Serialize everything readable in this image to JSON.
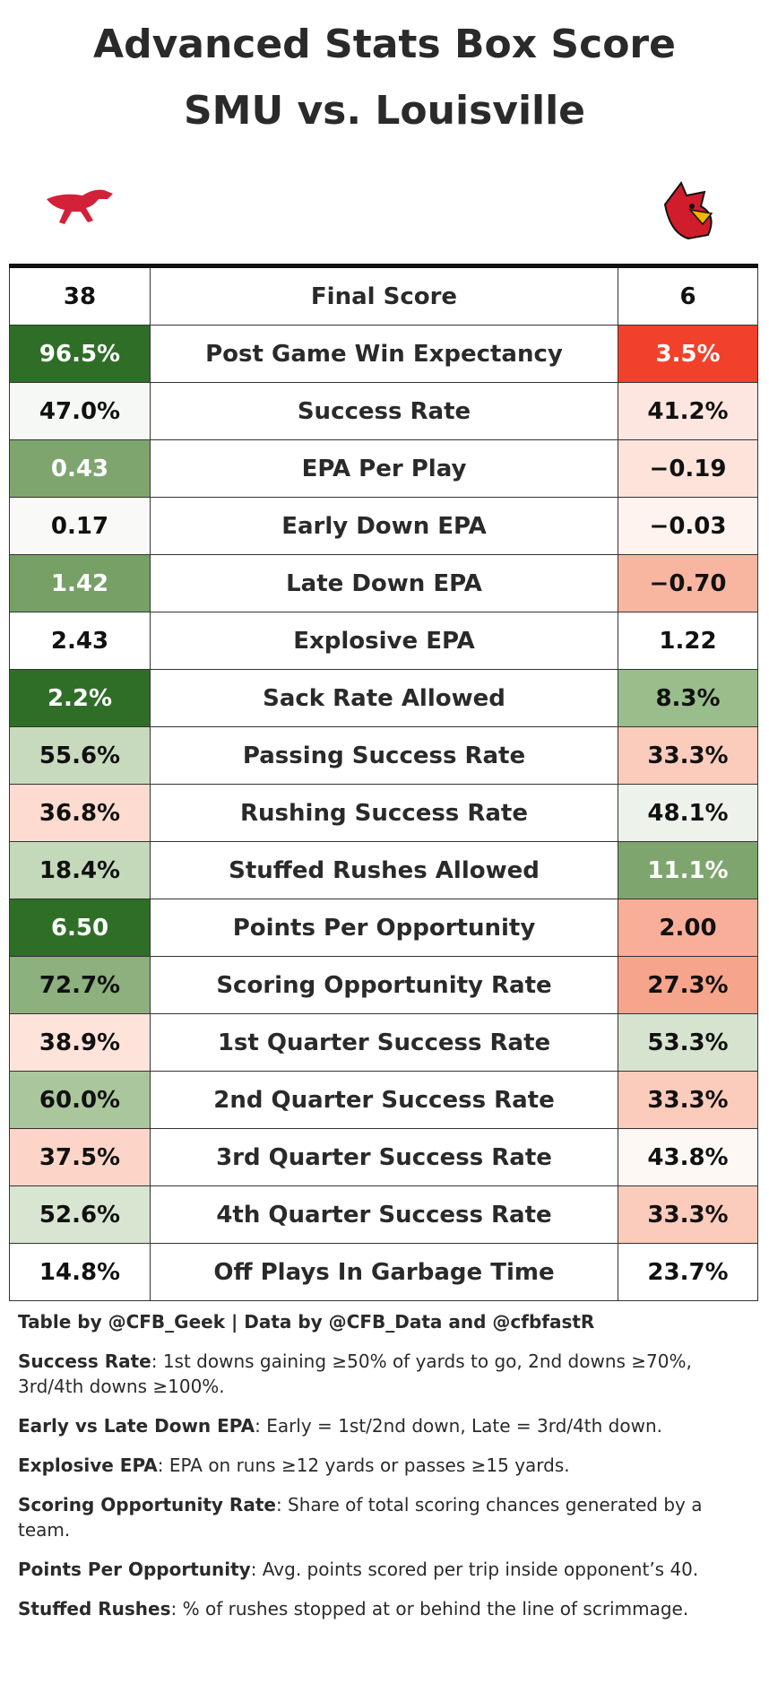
{
  "header": {
    "title": "Advanced Stats Box Score",
    "subtitle": "SMU vs. Louisville"
  },
  "table": {
    "rows": [
      {
        "left": "38",
        "stat": "Final Score",
        "right": "6",
        "left_color": "#ffffff",
        "right_color": "#ffffff"
      },
      {
        "left": "96.5%",
        "stat": "Post Game Win Expectancy",
        "right": "3.5%",
        "left_color": "#2f6e27",
        "right_color": "#f2412b"
      },
      {
        "left": "47.0%",
        "stat": "Success Rate",
        "right": "41.2%",
        "left_color": "#f6f8f5",
        "right_color": "#fde6df"
      },
      {
        "left": "0.43",
        "stat": "EPA Per Play",
        "right": "−0.19",
        "left_color": "#7ea56e",
        "right_color": "#fde3da"
      },
      {
        "left": "0.17",
        "stat": "Early Down EPA",
        "right": "−0.03",
        "left_color": "#f9faf8",
        "right_color": "#fef3ef"
      },
      {
        "left": "1.42",
        "stat": "Late Down EPA",
        "right": "−0.70",
        "left_color": "#76a066",
        "right_color": "#f8b6a1"
      },
      {
        "left": "2.43",
        "stat": "Explosive EPA",
        "right": "1.22",
        "left_color": "#ffffff",
        "right_color": "#ffffff"
      },
      {
        "left": "2.2%",
        "stat": "Sack Rate Allowed",
        "right": "8.3%",
        "left_color": "#2f6e27",
        "right_color": "#9abd8c"
      },
      {
        "left": "55.6%",
        "stat": "Passing Success Rate",
        "right": "33.3%",
        "left_color": "#c8dabe",
        "right_color": "#fbcbbb"
      },
      {
        "left": "36.8%",
        "stat": "Rushing Success Rate",
        "right": "48.1%",
        "left_color": "#fddbd0",
        "right_color": "#edf3ea"
      },
      {
        "left": "18.4%",
        "stat": "Stuffed Rushes Allowed",
        "right": "11.1%",
        "left_color": "#c4d8ba",
        "right_color": "#7ea56e"
      },
      {
        "left": "6.50",
        "stat": "Points Per Opportunity",
        "right": "2.00",
        "left_color": "#2f6e27",
        "right_color": "#f8ae98"
      },
      {
        "left": "72.7%",
        "stat": "Scoring Opportunity Rate",
        "right": "27.3%",
        "left_color": "#8cb07e",
        "right_color": "#f7a48c"
      },
      {
        "left": "38.9%",
        "stat": "1st Quarter Success Rate",
        "right": "53.3%",
        "left_color": "#fde3da",
        "right_color": "#d6e4cf"
      },
      {
        "left": "60.0%",
        "stat": "2nd Quarter Success Rate",
        "right": "33.3%",
        "left_color": "#a9c69c",
        "right_color": "#fbcbbb"
      },
      {
        "left": "37.5%",
        "stat": "3rd Quarter Success Rate",
        "right": "43.8%",
        "left_color": "#fcd5c8",
        "right_color": "#fef8f5"
      },
      {
        "left": "52.6%",
        "stat": "4th Quarter Success Rate",
        "right": "33.3%",
        "left_color": "#d8e5d1",
        "right_color": "#fbcbbb"
      },
      {
        "left": "14.8%",
        "stat": "Off Plays In Garbage Time",
        "right": "23.7%",
        "left_color": "#ffffff",
        "right_color": "#ffffff"
      }
    ]
  },
  "footer": {
    "credit": "Table by @CFB_Geek | Data by @CFB_Data and @cfbfastR",
    "notes": [
      {
        "term": "Success Rate",
        "text": ": 1st downs gaining ≥50% of yards to go, 2nd downs ≥70%, 3rd/4th downs ≥100%."
      },
      {
        "term": "Early vs Late Down EPA",
        "text": ": Early = 1st/2nd down, Late = 3rd/4th down."
      },
      {
        "term": "Explosive EPA",
        "text": ": EPA on runs ≥12 yards or passes ≥15 yards."
      },
      {
        "term": "Scoring Opportunity Rate",
        "text": ": Share of total scoring chances generated by a team."
      },
      {
        "term": "Points Per Opportunity",
        "text": ": Avg. points scored per trip inside opponent’s 40."
      },
      {
        "term": "Stuffed Rushes",
        "text": ": % of rushes stopped at or behind the line of scrimmage."
      }
    ]
  }
}
